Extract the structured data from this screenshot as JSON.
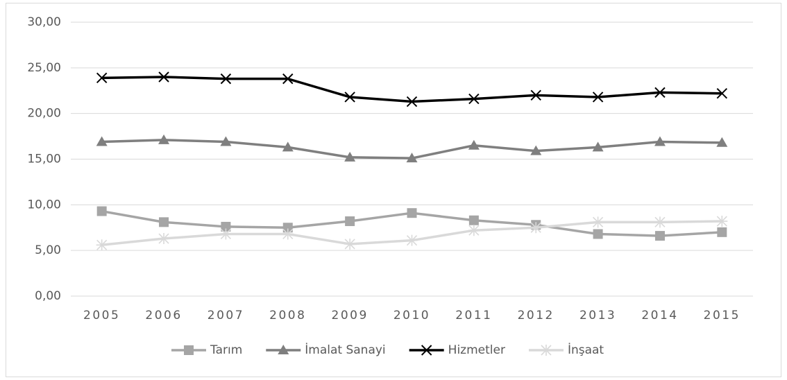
{
  "chart_data": {
    "type": "line",
    "categories": [
      "2005",
      "2006",
      "2007",
      "2008",
      "2009",
      "2010",
      "2011",
      "2012",
      "2013",
      "2014",
      "2015"
    ],
    "series": [
      {
        "name": "Tarım",
        "color": "#a5a5a5",
        "marker": "square",
        "values": [
          9.3,
          8.1,
          7.6,
          7.5,
          8.2,
          9.1,
          8.3,
          7.8,
          6.8,
          6.6,
          7.0
        ]
      },
      {
        "name": "İmalat Sanayi",
        "color": "#7f7f7f",
        "marker": "triangle",
        "values": [
          16.9,
          17.1,
          16.9,
          16.3,
          15.2,
          15.1,
          16.5,
          15.9,
          16.3,
          16.9,
          16.8
        ]
      },
      {
        "name": "Hizmetler",
        "color": "#000000",
        "marker": "x",
        "values": [
          23.9,
          24.0,
          23.8,
          23.8,
          21.8,
          21.3,
          21.6,
          22.0,
          21.8,
          22.3,
          22.2
        ]
      },
      {
        "name": "İnşaat",
        "color": "#d9d9d9",
        "marker": "star",
        "values": [
          5.6,
          6.3,
          6.8,
          6.8,
          5.7,
          6.1,
          7.2,
          7.5,
          8.1,
          8.1,
          8.2
        ]
      }
    ],
    "ylim": [
      0,
      30
    ],
    "yticks": [
      {
        "value": 0,
        "label": "0,00"
      },
      {
        "value": 5,
        "label": "5,00"
      },
      {
        "value": 10,
        "label": "10,00"
      },
      {
        "value": 15,
        "label": "15,00"
      },
      {
        "value": 20,
        "label": "20,00"
      },
      {
        "value": 25,
        "label": "25,00"
      },
      {
        "value": 30,
        "label": "30,00"
      }
    ],
    "grid": true,
    "legend": "bottom"
  }
}
